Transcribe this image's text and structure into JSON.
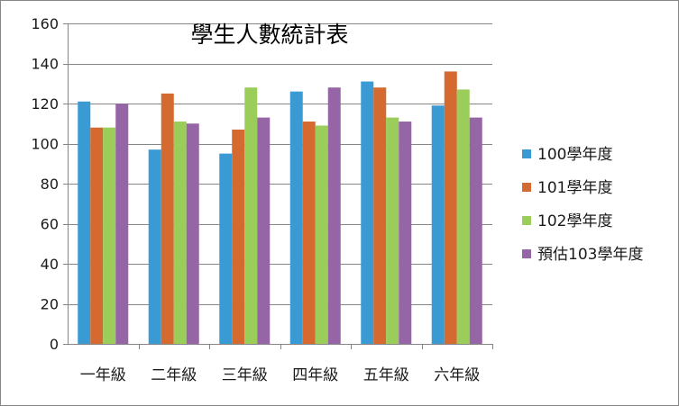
{
  "chart_data": {
    "type": "bar",
    "title": "學生人數統計表",
    "xlabel": "",
    "ylabel": "",
    "ylim": [
      0,
      160
    ],
    "yticks": [
      0,
      20,
      40,
      60,
      80,
      100,
      120,
      140,
      160
    ],
    "grid": true,
    "legend": "right",
    "categories": [
      "一年級",
      "二年級",
      "三年級",
      "四年級",
      "五年級",
      "六年級"
    ],
    "series": [
      {
        "name": "100學年度",
        "color": "#3a9bd4",
        "values": [
          121,
          97,
          95,
          126,
          131,
          119
        ]
      },
      {
        "name": "101學年度",
        "color": "#d46a2f",
        "values": [
          108,
          125,
          107,
          111,
          128,
          136
        ]
      },
      {
        "name": "102學年度",
        "color": "#9acd5a",
        "values": [
          108,
          111,
          128,
          109,
          113,
          127
        ]
      },
      {
        "name": "預估103學年度",
        "color": "#9665a6",
        "values": [
          120,
          110,
          113,
          128,
          111,
          113
        ]
      }
    ]
  }
}
